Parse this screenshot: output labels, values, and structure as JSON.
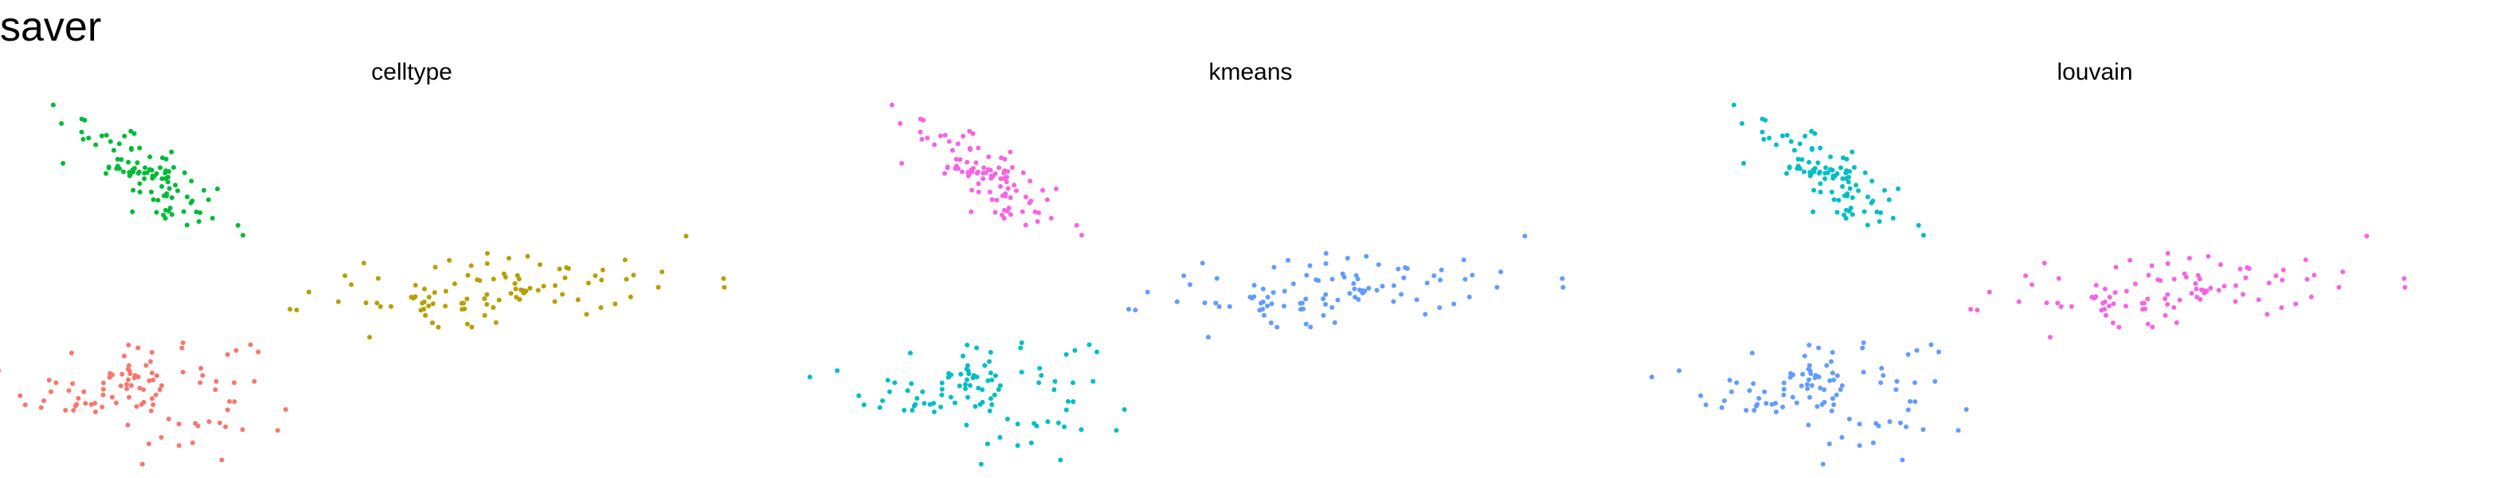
{
  "title": "saver",
  "chart_data": [
    {
      "type": "scatter",
      "title": "celltype",
      "xlabel": "",
      "ylabel": "",
      "grid": false,
      "clusters": [
        {
          "color": "#F8766D",
          "center": [
            -4.6,
            -2.6
          ],
          "spread": [
            1.25,
            0.65
          ],
          "n": 100,
          "tilt": 0.0
        },
        {
          "color": "#00BA38",
          "center": [
            -4.4,
            2.5
          ],
          "spread": [
            0.9,
            0.35
          ],
          "n": 100,
          "tilt": -0.72
        },
        {
          "color": "#B79F00",
          "center": [
            3.3,
            -0.3
          ],
          "spread": [
            2.3,
            0.45
          ],
          "n": 100,
          "tilt": 0.04
        }
      ],
      "xlim": [
        -7,
        10
      ],
      "ylim": [
        -4.6,
        4.4
      ]
    },
    {
      "type": "scatter",
      "title": "kmeans",
      "xlabel": "",
      "ylabel": "",
      "grid": false,
      "clusters": [
        {
          "color": "#00BFC4",
          "center": [
            -4.6,
            -2.6
          ],
          "spread": [
            1.25,
            0.65
          ],
          "n": 100,
          "tilt": 0.0
        },
        {
          "color": "#F564E3",
          "center": [
            -4.4,
            2.5
          ],
          "spread": [
            0.9,
            0.35
          ],
          "n": 100,
          "tilt": -0.72
        },
        {
          "color": "#619CFF",
          "center": [
            3.3,
            -0.3
          ],
          "spread": [
            2.3,
            0.45
          ],
          "n": 100,
          "tilt": 0.04
        }
      ],
      "xlim": [
        -7,
        10
      ],
      "ylim": [
        -4.6,
        4.4
      ]
    },
    {
      "type": "scatter",
      "title": "louvain",
      "xlabel": "",
      "ylabel": "",
      "grid": false,
      "clusters": [
        {
          "color": "#619CFF",
          "center": [
            -4.6,
            -2.6
          ],
          "spread": [
            1.25,
            0.65
          ],
          "n": 100,
          "tilt": 0.0
        },
        {
          "color": "#00BFC4",
          "center": [
            -4.4,
            2.5
          ],
          "spread": [
            0.9,
            0.35
          ],
          "n": 100,
          "tilt": -0.72
        },
        {
          "color": "#F564E3",
          "center": [
            3.3,
            -0.3
          ],
          "spread": [
            2.3,
            0.45
          ],
          "n": 100,
          "tilt": 0.04
        }
      ],
      "xlim": [
        -7,
        10
      ],
      "ylim": [
        -4.6,
        4.4
      ]
    }
  ]
}
